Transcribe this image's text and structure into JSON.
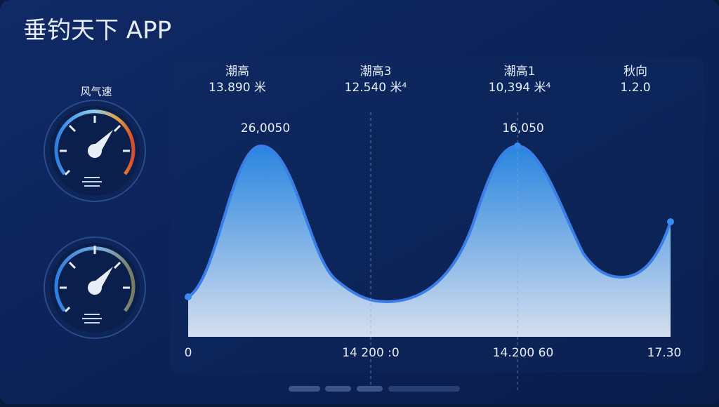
{
  "header": {
    "title": "垂钓天下 APP"
  },
  "gauges": {
    "label": "风气速"
  },
  "tide_info": [
    {
      "label": "潮高",
      "value": "13.890 米"
    },
    {
      "label": "潮高3",
      "value": "12.540 米⁴"
    },
    {
      "label": "潮高1",
      "value": "10,394 米⁴"
    },
    {
      "label": "秋向",
      "value": "1.2.0"
    }
  ],
  "peak_labels": [
    "26,0050",
    "16,050"
  ],
  "x_labels": [
    "0",
    "14 200 :0",
    "14.200 60",
    "17.30"
  ]
}
